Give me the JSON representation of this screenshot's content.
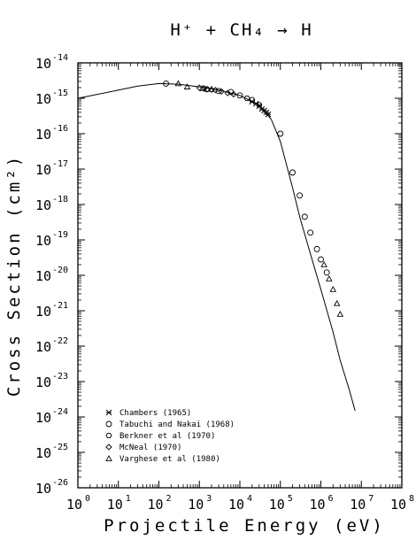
{
  "chart_data": {
    "type": "scatter",
    "title": "H⁺ + CH₄ → H",
    "xlabel": "Projectile Energy (eV)",
    "ylabel": "Cross Section (cm²)",
    "x_scale": "log",
    "y_scale": "log",
    "xlim": [
      1,
      100000000
    ],
    "ylim": [
      1e-26,
      1e-14
    ],
    "x_ticks": [
      {
        "base": "10",
        "exp": "0",
        "value": 1
      },
      {
        "base": "10",
        "exp": "1",
        "value": 10
      },
      {
        "base": "10",
        "exp": "2",
        "value": 100
      },
      {
        "base": "10",
        "exp": "3",
        "value": 1000
      },
      {
        "base": "10",
        "exp": "4",
        "value": 10000
      },
      {
        "base": "10",
        "exp": "5",
        "value": 100000
      },
      {
        "base": "10",
        "exp": "6",
        "value": 1000000
      },
      {
        "base": "10",
        "exp": "7",
        "value": 10000000
      },
      {
        "base": "10",
        "exp": "8",
        "value": 100000000
      }
    ],
    "y_ticks": [
      {
        "base": "10",
        "exp": "-14",
        "value": 1e-14
      },
      {
        "base": "10",
        "exp": "-15",
        "value": 1e-15
      },
      {
        "base": "10",
        "exp": "-16",
        "value": 1e-16
      },
      {
        "base": "10",
        "exp": "-17",
        "value": 1e-17
      },
      {
        "base": "10",
        "exp": "-18",
        "value": 1e-18
      },
      {
        "base": "10",
        "exp": "-19",
        "value": 1e-19
      },
      {
        "base": "10",
        "exp": "-20",
        "value": 1e-20
      },
      {
        "base": "10",
        "exp": "-21",
        "value": 1e-21
      },
      {
        "base": "10",
        "exp": "-22",
        "value": 1e-22
      },
      {
        "base": "10",
        "exp": "-23",
        "value": 1e-23
      },
      {
        "base": "10",
        "exp": "-24",
        "value": 1e-24
      },
      {
        "base": "10",
        "exp": "-25",
        "value": 1e-25
      },
      {
        "base": "10",
        "exp": "-26",
        "value": 1e-26
      }
    ],
    "legend_position": "bottom-left",
    "series": [
      {
        "name": "Chambers (1965)",
        "marker": "asterisk",
        "points": [
          [
            20000,
            8e-16
          ],
          [
            25000,
            7e-16
          ],
          [
            30000,
            6e-16
          ],
          [
            35000,
            5e-16
          ],
          [
            40000,
            4.5e-16
          ],
          [
            45000,
            4e-16
          ],
          [
            50000,
            3.5e-16
          ]
        ]
      },
      {
        "name": "Tabuchi and Nakai (1968)",
        "marker": "circle",
        "points": [
          [
            150,
            2.6e-15
          ],
          [
            1500,
            1.8e-15
          ],
          [
            3000,
            1.6e-15
          ],
          [
            6000,
            1.5e-15
          ],
          [
            10000,
            1.2e-15
          ],
          [
            100000,
            1e-16
          ],
          [
            200000,
            8e-18
          ],
          [
            300000,
            1.8e-18
          ],
          [
            400000,
            4.5e-19
          ],
          [
            550000,
            1.6e-19
          ],
          [
            800000,
            5.5e-20
          ],
          [
            1000000,
            2.8e-20
          ],
          [
            1400000,
            1.2e-20
          ]
        ]
      },
      {
        "name": "Berkner et al (1970)",
        "marker": "hexagon",
        "points": [
          [
            15000,
            1e-15
          ],
          [
            20000,
            9e-16
          ],
          [
            30000,
            6.5e-16
          ]
        ]
      },
      {
        "name": "McNeal (1970)",
        "marker": "diamond",
        "points": [
          [
            1000,
            2e-15
          ],
          [
            1300,
            1.9e-15
          ],
          [
            1600,
            1.8e-15
          ],
          [
            2000,
            1.75e-15
          ],
          [
            2500,
            1.7e-15
          ],
          [
            3500,
            1.55e-15
          ],
          [
            5000,
            1.4e-15
          ],
          [
            7000,
            1.3e-15
          ]
        ]
      },
      {
        "name": "Varghese et al (1980)",
        "marker": "triangle",
        "points": [
          [
            300,
            2.6e-15
          ],
          [
            500,
            2.1e-15
          ],
          [
            1200,
            1.9e-15
          ],
          [
            2000,
            1.8e-15
          ],
          [
            1200000,
            2e-20
          ],
          [
            1600000,
            8e-21
          ],
          [
            2000000,
            4e-21
          ],
          [
            2500000,
            1.6e-21
          ],
          [
            3000000,
            8e-22
          ]
        ]
      }
    ],
    "curve": [
      [
        1,
        1e-15
      ],
      [
        10,
        1.7e-15
      ],
      [
        30,
        2.2e-15
      ],
      [
        100,
        2.6e-15
      ],
      [
        300,
        2.5e-15
      ],
      [
        1000,
        2.1e-15
      ],
      [
        3000,
        1.7e-15
      ],
      [
        10000,
        1.2e-15
      ],
      [
        30000,
        6.5e-16
      ],
      [
        60000,
        2.5e-16
      ],
      [
        100000,
        6e-17
      ],
      [
        200000,
        3e-18
      ],
      [
        300000,
        4.5e-19
      ],
      [
        500000,
        6e-20
      ],
      [
        1000000,
        4e-21
      ],
      [
        2000000,
        2.5e-22
      ],
      [
        3000000,
        4e-23
      ],
      [
        5000000,
        6e-24
      ],
      [
        7000000,
        1.5e-24
      ]
    ]
  }
}
